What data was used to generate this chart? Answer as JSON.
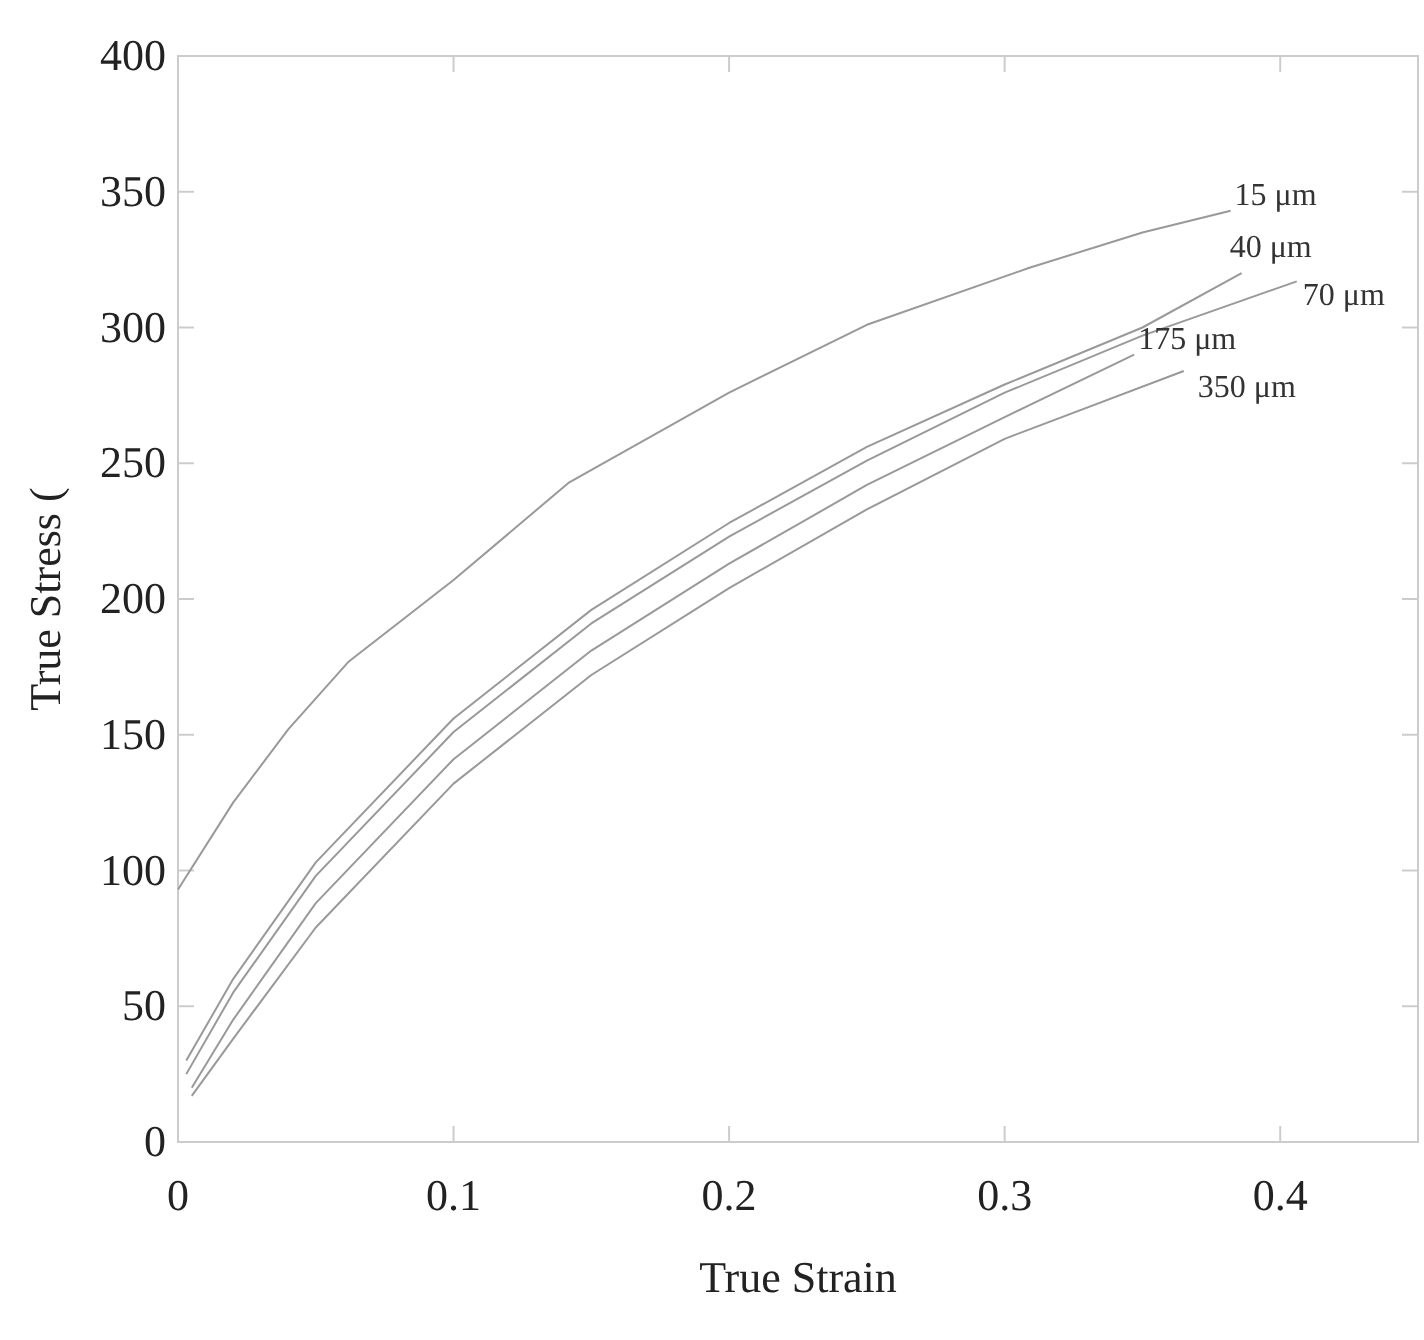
{
  "chart_data": {
    "type": "line",
    "xlabel": "True Strain",
    "ylabel": "True Stress (",
    "xlim": [
      0,
      0.45
    ],
    "ylim": [
      0,
      400
    ],
    "xticks": [
      0,
      0.1,
      0.2,
      0.3,
      0.4
    ],
    "yticks": [
      0,
      50,
      100,
      150,
      200,
      250,
      300,
      350,
      400
    ],
    "grid": false,
    "legend": false,
    "marker": "none",
    "line_style": "solid",
    "series": [
      {
        "name": "15 μm",
        "color": "#999999",
        "x": [
          0,
          0.02,
          0.04,
          0.062,
          0.1,
          0.142,
          0.2,
          0.25,
          0.309,
          0.35,
          0.382
        ],
        "values": [
          93,
          125,
          152,
          177,
          207,
          243,
          276,
          301,
          322,
          335,
          343
        ]
      },
      {
        "name": "40 μm",
        "color": "#999999",
        "x": [
          0.003,
          0.02,
          0.05,
          0.1,
          0.15,
          0.2,
          0.25,
          0.3,
          0.35,
          0.386
        ],
        "values": [
          30,
          60,
          103,
          156,
          196,
          228,
          256,
          279,
          300,
          320
        ]
      },
      {
        "name": "70 μm",
        "color": "#999999",
        "x": [
          0.003,
          0.02,
          0.05,
          0.1,
          0.15,
          0.2,
          0.25,
          0.3,
          0.35,
          0.406
        ],
        "values": [
          25,
          55,
          98,
          151,
          191,
          223,
          251,
          276,
          297,
          317
        ]
      },
      {
        "name": "175 μm",
        "color": "#999999",
        "x": [
          0.005,
          0.02,
          0.05,
          0.1,
          0.15,
          0.2,
          0.25,
          0.3,
          0.347
        ],
        "values": [
          20,
          45,
          88,
          141,
          181,
          213,
          242,
          267,
          290
        ]
      },
      {
        "name": "350 μm",
        "color": "#999999",
        "x": [
          0.005,
          0.02,
          0.05,
          0.1,
          0.15,
          0.2,
          0.25,
          0.3,
          0.365
        ],
        "values": [
          17,
          38,
          79,
          132,
          172,
          204,
          233,
          259,
          284
        ]
      }
    ]
  }
}
